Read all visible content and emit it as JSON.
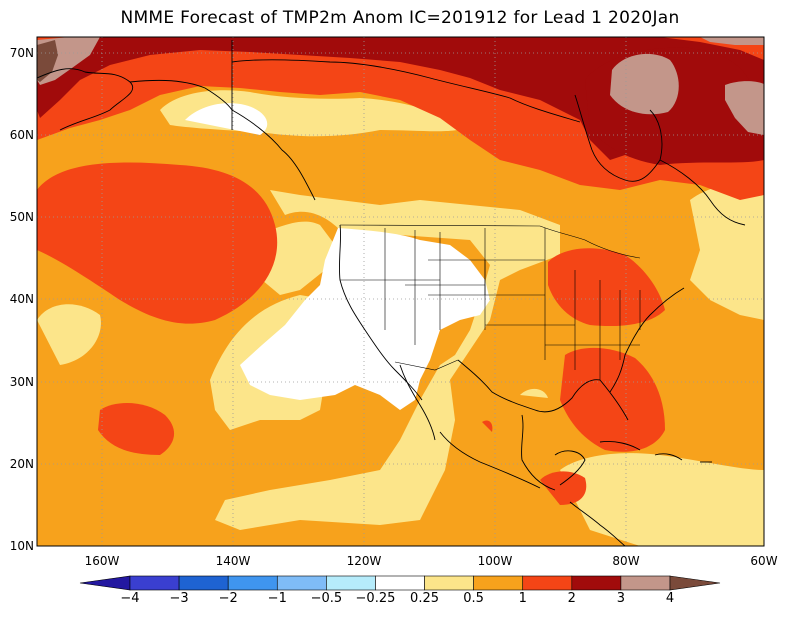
{
  "title": "NMME Forecast of TMP2m Anom IC=201912 for Lead 1 2020Jan",
  "axes": {
    "lon_labels": [
      "160W",
      "140W",
      "120W",
      "100W",
      "80W",
      "60W"
    ],
    "lat_labels": [
      "70N",
      "60N",
      "50N",
      "40N",
      "30N",
      "20N",
      "10N"
    ]
  },
  "colorbar": {
    "labels": [
      "-4",
      "-3",
      "-2",
      "-1",
      "-0.5",
      "-0.25",
      "0.25",
      "0.5",
      "1",
      "2",
      "3",
      "4"
    ],
    "colors": [
      "#2318a0",
      "#3a3fd0",
      "#1e63d2",
      "#3f95ef",
      "#7fbcf7",
      "#b6ecfb",
      "#ffffff",
      "#fce58a",
      "#f7a21c",
      "#f44516",
      "#a10b0b",
      "#c3968a",
      "#7a4a3a"
    ]
  },
  "palette": {
    "ocean_base": "#f7a21c",
    "white": "#ffffff",
    "light_yellow": "#fce58a",
    "orange": "#f7a21c",
    "red_orange": "#f44516",
    "dark_red": "#a10b0b",
    "tan": "#c3968a",
    "brown": "#7a4a3a"
  }
}
